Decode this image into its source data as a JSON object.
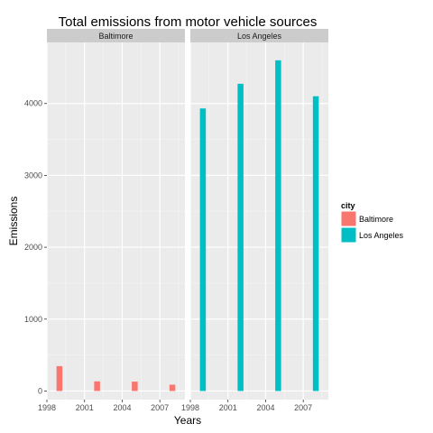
{
  "chart_data": {
    "type": "bar",
    "title": "Total emissions from motor vehicle sources",
    "xlabel": "Years",
    "ylabel": "Emissions",
    "facet_var": "city",
    "facets": [
      "Baltimore",
      "Los Angeles"
    ],
    "x_ticks": [
      1998,
      2001,
      2004,
      2007
    ],
    "xlim": [
      1998,
      2009
    ],
    "y_ticks": [
      0,
      1000,
      2000,
      3000,
      4000
    ],
    "ylim": [
      -120,
      4850
    ],
    "grid": true,
    "legend": {
      "title": "city",
      "placement": "right",
      "entries": [
        {
          "label": "Baltimore",
          "color": "#F8766D"
        },
        {
          "label": "Los Angeles",
          "color": "#00BFC4"
        }
      ]
    },
    "x": [
      1999,
      2002,
      2005,
      2008
    ],
    "series": [
      {
        "name": "Baltimore",
        "facet": "Baltimore",
        "color": "#F8766D",
        "values": [
          346,
          134,
          130,
          88
        ]
      },
      {
        "name": "Los Angeles",
        "facet": "Los Angeles",
        "color": "#00BFC4",
        "values": [
          3931,
          4274,
          4601,
          4101
        ]
      }
    ]
  }
}
